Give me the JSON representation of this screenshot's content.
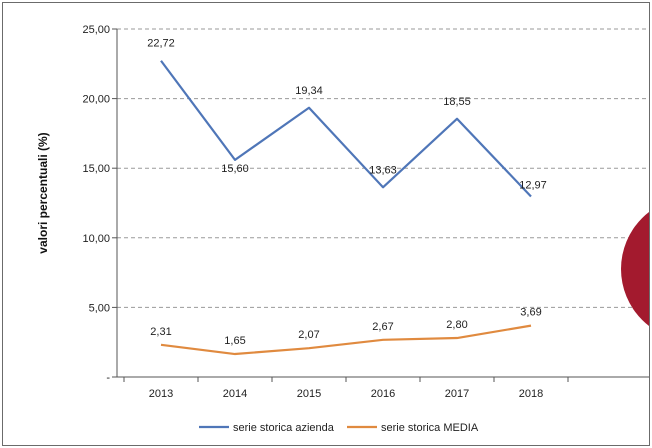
{
  "chart_data": {
    "type": "line",
    "title": "",
    "xlabel": "",
    "ylabel": "valori percentuali (%)",
    "categories": [
      "2013",
      "2014",
      "2015",
      "2016",
      "2017",
      "2018"
    ],
    "ylim": [
      0,
      25
    ],
    "yticks": [
      "-",
      "5,00",
      "10,00",
      "15,00",
      "20,00",
      "25,00"
    ],
    "grid": "horizontal dashed",
    "legend_position": "bottom",
    "series": [
      {
        "name": "serie storica azienda",
        "color": "#4f76b8",
        "values": [
          22.72,
          15.6,
          19.34,
          13.63,
          18.55,
          12.97
        ],
        "labels": [
          "22,72",
          "15,60",
          "19,34",
          "13,63",
          "18,55",
          "12,97"
        ]
      },
      {
        "name": "serie storica MEDIA",
        "color": "#e08a3f",
        "values": [
          2.31,
          1.65,
          2.07,
          2.67,
          2.8,
          3.69
        ],
        "labels": [
          "2,31",
          "1,65",
          "2,07",
          "2,67",
          "2,80",
          "3,69"
        ]
      }
    ],
    "overlay_badge_color": "#a31a2e"
  }
}
